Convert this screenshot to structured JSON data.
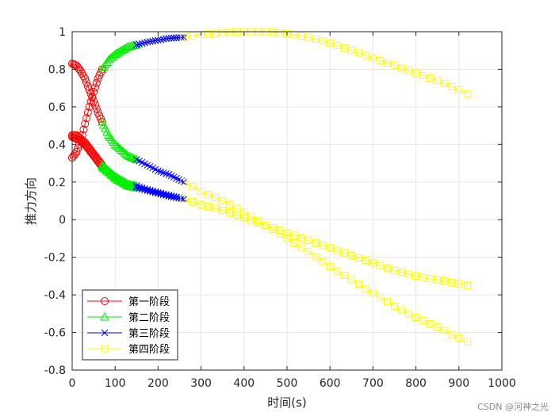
{
  "chart_data": {
    "type": "line",
    "title": "",
    "xlabel": "时间(s)",
    "ylabel": "推力方向",
    "xlim": [
      0,
      1000
    ],
    "ylim": [
      -0.8,
      1
    ],
    "xticks": [
      0,
      100,
      200,
      300,
      400,
      500,
      600,
      700,
      800,
      900,
      1000
    ],
    "yticks": [
      -0.8,
      -0.6,
      -0.4,
      -0.2,
      0,
      0.2,
      0.4,
      0.6,
      0.8,
      1
    ],
    "xtick_labels": [
      "0",
      "100",
      "200",
      "300",
      "400",
      "500",
      "600",
      "700",
      "800",
      "900",
      "1000"
    ],
    "ytick_labels": [
      "-0.8",
      "-0.6",
      "-0.4",
      "-0.2",
      "0",
      "0.2",
      "0.4",
      "0.6",
      "0.8",
      "1"
    ],
    "grid": true,
    "legend_position": "bottom-left",
    "series": [
      {
        "name": "第一阶段",
        "color": "#ff0000",
        "marker": "circle",
        "lines": [
          {
            "x": [
              0,
              10,
              20,
              30,
              40,
              50,
              60,
              70
            ],
            "y": [
              0.83,
              0.82,
              0.79,
              0.75,
              0.69,
              0.63,
              0.57,
              0.52
            ]
          },
          {
            "x": [
              0,
              10,
              20,
              30,
              40,
              50,
              60,
              70
            ],
            "y": [
              0.33,
              0.36,
              0.42,
              0.51,
              0.6,
              0.68,
              0.75,
              0.8
            ]
          },
          {
            "x": [
              0,
              10,
              20,
              30,
              40,
              50,
              60,
              70
            ],
            "y": [
              0.45,
              0.45,
              0.43,
              0.41,
              0.38,
              0.35,
              0.32,
              0.29
            ]
          },
          {
            "x": [
              0,
              10,
              20,
              30,
              40,
              50,
              60,
              70
            ],
            "y": [
              0.44,
              0.43,
              0.42,
              0.4,
              0.37,
              0.34,
              0.31,
              0.28
            ]
          }
        ]
      },
      {
        "name": "第二阶段",
        "color": "#00ee00",
        "marker": "triangle",
        "lines": [
          {
            "x": [
              70,
              85,
              100,
              115,
              130,
              150
            ],
            "y": [
              0.8,
              0.85,
              0.88,
              0.9,
              0.92,
              0.93
            ]
          },
          {
            "x": [
              70,
              85,
              100,
              115,
              130,
              150
            ],
            "y": [
              0.52,
              0.45,
              0.4,
              0.37,
              0.34,
              0.32
            ]
          },
          {
            "x": [
              70,
              85,
              100,
              115,
              130,
              150
            ],
            "y": [
              0.29,
              0.26,
              0.23,
              0.21,
              0.19,
              0.18
            ]
          },
          {
            "x": [
              70,
              85,
              100,
              115,
              130,
              150
            ],
            "y": [
              0.28,
              0.25,
              0.22,
              0.2,
              0.18,
              0.17
            ]
          }
        ]
      },
      {
        "name": "第三阶段",
        "color": "#0000ff",
        "marker": "x",
        "lines": [
          {
            "x": [
              150,
              175,
              200,
              225,
              260
            ],
            "y": [
              0.93,
              0.945,
              0.955,
              0.965,
              0.97
            ]
          },
          {
            "x": [
              150,
              175,
              200,
              225,
              260
            ],
            "y": [
              0.32,
              0.29,
              0.26,
              0.24,
              0.2
            ]
          },
          {
            "x": [
              150,
              175,
              200,
              225,
              260
            ],
            "y": [
              0.18,
              0.16,
              0.145,
              0.13,
              0.11
            ]
          },
          {
            "x": [
              150,
              175,
              200,
              225,
              260
            ],
            "y": [
              0.17,
              0.155,
              0.14,
              0.125,
              0.11
            ]
          }
        ]
      },
      {
        "name": "第四阶段",
        "color": "#ffff00",
        "marker": "square",
        "lines": [
          {
            "x": [
              260,
              300,
              350,
              400,
              450,
              500,
              550,
              600,
              650,
              700,
              750,
              800,
              850,
              900,
              920
            ],
            "y": [
              0.97,
              0.985,
              0.995,
              1.0,
              1.0,
              0.99,
              0.97,
              0.94,
              0.9,
              0.86,
              0.82,
              0.78,
              0.74,
              0.69,
              0.67
            ]
          },
          {
            "x": [
              260,
              300,
              350,
              400,
              450,
              500,
              550,
              600,
              650,
              700,
              750,
              800,
              850,
              900,
              920
            ],
            "y": [
              0.2,
              0.15,
              0.1,
              0.04,
              -0.03,
              -0.1,
              -0.17,
              -0.25,
              -0.32,
              -0.39,
              -0.46,
              -0.52,
              -0.57,
              -0.63,
              -0.65
            ]
          },
          {
            "x": [
              260,
              300,
              350,
              400,
              450,
              500,
              550,
              600,
              650,
              700,
              750,
              800,
              850,
              900,
              920
            ],
            "y": [
              0.11,
              0.08,
              0.05,
              0.01,
              -0.03,
              -0.07,
              -0.11,
              -0.15,
              -0.19,
              -0.23,
              -0.27,
              -0.3,
              -0.32,
              -0.34,
              -0.35
            ]
          },
          {
            "x": [
              260,
              300,
              350,
              400,
              450,
              500,
              550,
              600,
              650,
              700,
              750,
              800,
              850,
              900,
              920
            ],
            "y": [
              0.11,
              0.08,
              0.05,
              0.01,
              -0.03,
              -0.07,
              -0.11,
              -0.15,
              -0.19,
              -0.23,
              -0.27,
              -0.3,
              -0.32,
              -0.34,
              -0.35
            ]
          }
        ]
      }
    ]
  },
  "watermark": "CSDN @河神之光"
}
